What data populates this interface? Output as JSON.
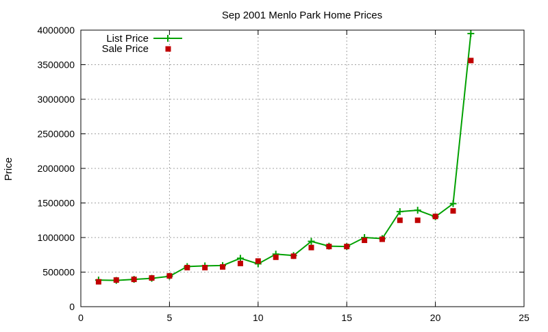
{
  "chart_data": {
    "type": "line",
    "title": "Sep 2001 Menlo Park Home Prices",
    "xlabel": "",
    "ylabel": "Price",
    "xlim": [
      0,
      25
    ],
    "ylim": [
      0,
      4000000
    ],
    "x_ticks": [
      "0",
      "5",
      "10",
      "15",
      "20",
      "25"
    ],
    "x_tick_values": [
      0,
      5,
      10,
      15,
      20,
      25
    ],
    "y_ticks": [
      "0",
      "500000",
      "1000000",
      "1500000",
      "2000000",
      "2500000",
      "3000000",
      "3500000",
      "4000000"
    ],
    "y_tick_values": [
      0,
      500000,
      1000000,
      1500000,
      2000000,
      2500000,
      3000000,
      3500000,
      4000000
    ],
    "grid": true,
    "legend_position": "top-left",
    "x": [
      1,
      2,
      3,
      4,
      5,
      6,
      7,
      8,
      9,
      10,
      11,
      12,
      13,
      14,
      15,
      16,
      17,
      18,
      19,
      20,
      21,
      22
    ],
    "series": [
      {
        "name": "List Price",
        "style": "line-plus",
        "color": "#00a000",
        "values": [
          385000,
          380000,
          395000,
          410000,
          440000,
          580000,
          590000,
          595000,
          700000,
          620000,
          760000,
          740000,
          945000,
          875000,
          870000,
          1000000,
          985000,
          1375000,
          1395000,
          1300000,
          1490000,
          3950000
        ]
      },
      {
        "name": "Sale Price",
        "style": "points-square",
        "color": "#c00000",
        "values": [
          360000,
          385000,
          395000,
          415000,
          445000,
          565000,
          565000,
          575000,
          625000,
          660000,
          715000,
          730000,
          855000,
          870000,
          870000,
          960000,
          975000,
          1250000,
          1250000,
          1305000,
          1385000,
          3560000
        ]
      }
    ]
  }
}
